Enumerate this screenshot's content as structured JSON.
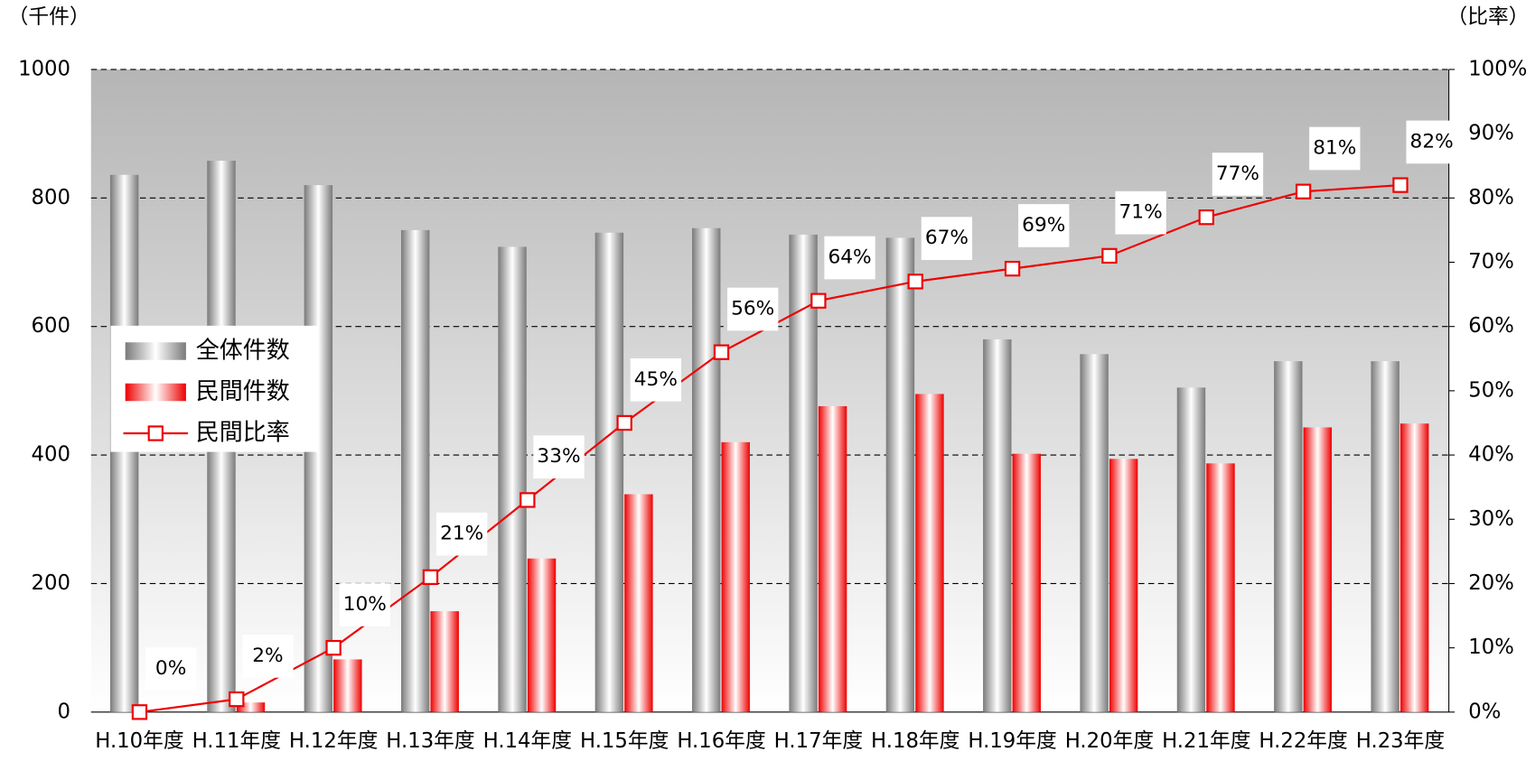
{
  "chart_data": {
    "type": "bar",
    "y_axis_label": "（千件）",
    "y2_axis_label": "（比率）",
    "categories": [
      "H.10年度",
      "H.11年度",
      "H.12年度",
      "H.13年度",
      "H.14年度",
      "H.15年度",
      "H.16年度",
      "H.17年度",
      "H.18年度",
      "H.19年度",
      "H.20年度",
      "H.21年度",
      "H.22年度",
      "H.23年度"
    ],
    "series": [
      {
        "name": "全体件数",
        "type": "bar",
        "color": "#888888",
        "values": [
          836,
          858,
          820,
          750,
          724,
          746,
          753,
          743,
          738,
          580,
          557,
          505,
          546,
          546
        ]
      },
      {
        "name": "民間件数",
        "type": "bar",
        "color": "#ee0000",
        "values": [
          0,
          15,
          82,
          157,
          239,
          339,
          420,
          476,
          495,
          402,
          394,
          387,
          443,
          449
        ]
      },
      {
        "name": "民間比率",
        "type": "line",
        "axis": "y2",
        "color": "#ee0000",
        "values": [
          0,
          2,
          10,
          21,
          33,
          45,
          56,
          64,
          67,
          69,
          71,
          77,
          81,
          82
        ],
        "value_labels": [
          "0%",
          "2%",
          "10%",
          "21%",
          "33%",
          "45%",
          "56%",
          "64%",
          "67%",
          "69%",
          "71%",
          "77%",
          "81%",
          "82%"
        ]
      }
    ],
    "ylim": [
      0,
      1000
    ],
    "yticks": [
      0,
      200,
      400,
      600,
      800,
      1000
    ],
    "y2lim": [
      0,
      100
    ],
    "y2ticks": [
      {
        "value": 0,
        "label": "0%"
      },
      {
        "value": 10,
        "label": "10%"
      },
      {
        "value": 20,
        "label": "20%"
      },
      {
        "value": 30,
        "label": "30%"
      },
      {
        "value": 40,
        "label": "40%"
      },
      {
        "value": 50,
        "label": "50%"
      },
      {
        "value": 60,
        "label": "60%"
      },
      {
        "value": 70,
        "label": "70%"
      },
      {
        "value": 80,
        "label": "80%"
      },
      {
        "value": 90,
        "label": "90%"
      },
      {
        "value": 100,
        "label": "100%"
      }
    ],
    "grid": true,
    "legend": "left"
  }
}
